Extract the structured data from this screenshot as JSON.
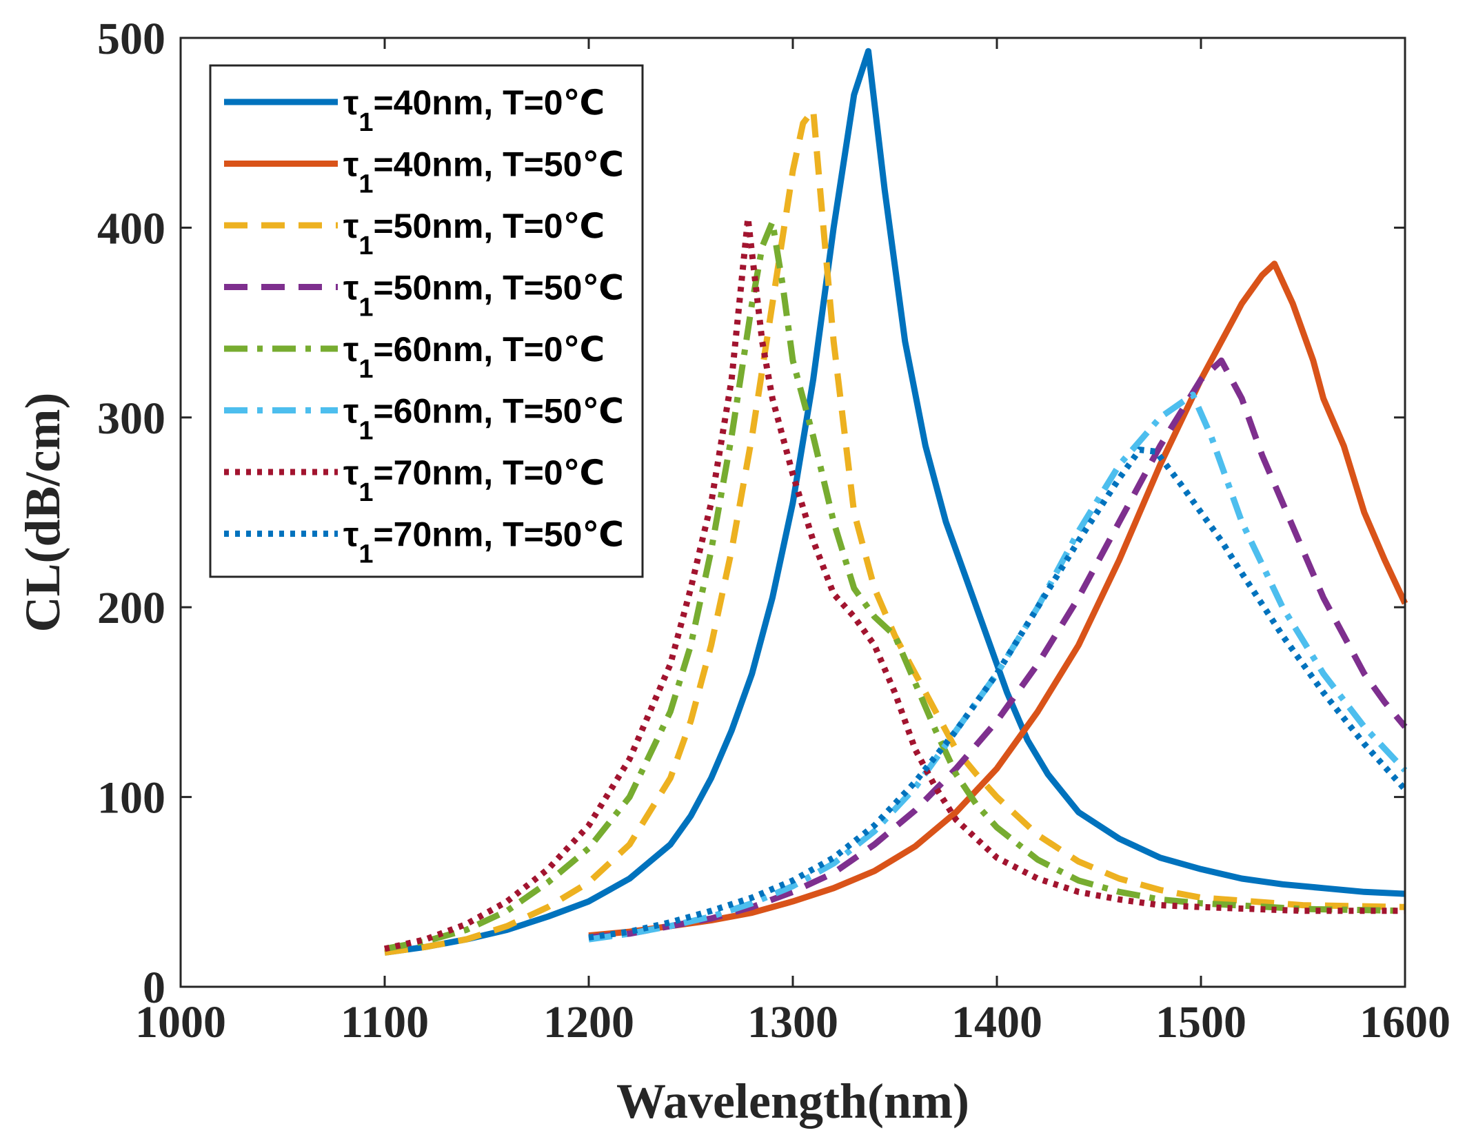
{
  "chart_data": {
    "type": "line",
    "xlabel": "Wavelength(nm)",
    "ylabel": "CL(dB/cm)",
    "xlim": [
      1000,
      1600
    ],
    "ylim": [
      0,
      500
    ],
    "xticks": [
      1000,
      1100,
      1200,
      1300,
      1400,
      1500,
      1600
    ],
    "yticks": [
      0,
      100,
      200,
      300,
      400,
      500
    ],
    "xtick_labels": [
      "1000",
      "1100",
      "1200",
      "1300",
      "1400",
      "1500",
      "1600"
    ],
    "ytick_labels": [
      "0",
      "100",
      "200",
      "300",
      "400",
      "500"
    ],
    "grid": false,
    "legend_position": "top-left",
    "series": [
      {
        "name": "τ1=40nm, T=0℃",
        "legend": {
          "greek": "τ",
          "sub": "1",
          "rest": "=40nm, T=0℃"
        },
        "color": "#0072BD",
        "style": "solid",
        "x": [
          1100,
          1120,
          1140,
          1160,
          1180,
          1200,
          1220,
          1240,
          1250,
          1260,
          1270,
          1280,
          1290,
          1300,
          1310,
          1320,
          1330,
          1337,
          1345,
          1355,
          1365,
          1375,
          1385,
          1395,
          1405,
          1415,
          1425,
          1440,
          1460,
          1480,
          1500,
          1520,
          1540,
          1560,
          1580,
          1600
        ],
        "y": [
          18,
          21,
          25,
          30,
          37,
          45,
          57,
          75,
          90,
          110,
          135,
          165,
          205,
          255,
          320,
          400,
          470,
          493,
          420,
          340,
          285,
          245,
          215,
          185,
          155,
          130,
          112,
          92,
          78,
          68,
          62,
          57,
          54,
          52,
          50,
          49
        ]
      },
      {
        "name": "τ1=40nm, T=50℃",
        "legend": {
          "greek": "τ",
          "sub": "1",
          "rest": "=40nm, T=50℃"
        },
        "color": "#D95319",
        "style": "solid",
        "x": [
          1200,
          1220,
          1240,
          1260,
          1280,
          1300,
          1320,
          1340,
          1360,
          1380,
          1400,
          1420,
          1440,
          1460,
          1480,
          1500,
          1510,
          1520,
          1530,
          1536,
          1545,
          1555,
          1560,
          1570,
          1580,
          1590,
          1600
        ],
        "y": [
          27,
          29,
          32,
          35,
          39,
          45,
          52,
          61,
          74,
          92,
          115,
          145,
          180,
          225,
          275,
          320,
          340,
          360,
          375,
          381,
          360,
          330,
          310,
          285,
          250,
          225,
          202
        ]
      },
      {
        "name": "τ1=50nm, T=0℃",
        "legend": {
          "greek": "τ",
          "sub": "1",
          "rest": "=50nm, T=0℃"
        },
        "color": "#EDB120",
        "style": "dashed",
        "x": [
          1100,
          1120,
          1140,
          1160,
          1180,
          1200,
          1220,
          1240,
          1250,
          1260,
          1270,
          1280,
          1290,
          1300,
          1305,
          1310,
          1315,
          1320,
          1330,
          1340,
          1350,
          1360,
          1370,
          1380,
          1390,
          1400,
          1420,
          1440,
          1460,
          1480,
          1500,
          1550,
          1600
        ],
        "y": [
          18,
          21,
          25,
          32,
          42,
          55,
          75,
          110,
          140,
          180,
          230,
          290,
          360,
          430,
          455,
          462,
          400,
          340,
          250,
          210,
          185,
          165,
          145,
          125,
          112,
          100,
          80,
          66,
          57,
          51,
          47,
          43,
          42
        ]
      },
      {
        "name": "τ1=50nm, T=50℃",
        "legend": {
          "greek": "τ",
          "sub": "1",
          "rest": "=50nm, T=50℃"
        },
        "color": "#7E2F8E",
        "style": "dashed",
        "x": [
          1200,
          1220,
          1240,
          1260,
          1280,
          1300,
          1320,
          1340,
          1360,
          1380,
          1400,
          1420,
          1440,
          1460,
          1480,
          1500,
          1510,
          1520,
          1530,
          1540,
          1550,
          1560,
          1570,
          1580,
          1590,
          1600
        ],
        "y": [
          26,
          28,
          32,
          36,
          42,
          50,
          60,
          75,
          93,
          115,
          140,
          170,
          205,
          245,
          285,
          320,
          330,
          310,
          280,
          255,
          230,
          205,
          185,
          165,
          150,
          137
        ]
      },
      {
        "name": "τ1=60nm, T=0℃",
        "legend": {
          "greek": "τ",
          "sub": "1",
          "rest": "=60nm, T=0℃"
        },
        "color": "#77AC30",
        "style": "dashdot",
        "x": [
          1100,
          1120,
          1140,
          1160,
          1180,
          1200,
          1220,
          1240,
          1250,
          1260,
          1270,
          1280,
          1285,
          1290,
          1295,
          1300,
          1310,
          1320,
          1330,
          1340,
          1350,
          1360,
          1370,
          1380,
          1390,
          1400,
          1420,
          1440,
          1460,
          1480,
          1500,
          1550,
          1600
        ],
        "y": [
          20,
          24,
          30,
          40,
          55,
          73,
          100,
          145,
          180,
          230,
          290,
          360,
          390,
          403,
          370,
          330,
          290,
          245,
          210,
          195,
          185,
          160,
          135,
          112,
          96,
          84,
          67,
          56,
          50,
          46,
          44,
          41,
          40
        ]
      },
      {
        "name": "τ1=60nm, T=50℃",
        "legend": {
          "greek": "τ",
          "sub": "1",
          "rest": "=60nm, T=50℃"
        },
        "color": "#4DBEEE",
        "style": "dashdot",
        "x": [
          1200,
          1220,
          1240,
          1260,
          1280,
          1300,
          1320,
          1340,
          1360,
          1380,
          1400,
          1420,
          1440,
          1460,
          1480,
          1496,
          1505,
          1520,
          1540,
          1560,
          1580,
          1600
        ],
        "y": [
          25,
          28,
          32,
          37,
          44,
          53,
          65,
          82,
          105,
          135,
          165,
          200,
          240,
          275,
          300,
          312,
          290,
          245,
          200,
          165,
          137,
          114
        ]
      },
      {
        "name": "τ1=70nm, T=0℃",
        "legend": {
          "greek": "τ",
          "sub": "1",
          "rest": "=70nm, T=0℃"
        },
        "color": "#A2142F",
        "style": "dotted",
        "x": [
          1100,
          1120,
          1140,
          1160,
          1180,
          1200,
          1220,
          1240,
          1250,
          1260,
          1270,
          1278,
          1285,
          1290,
          1300,
          1310,
          1320,
          1330,
          1340,
          1350,
          1360,
          1370,
          1380,
          1400,
          1420,
          1440,
          1460,
          1480,
          1500,
          1550,
          1600
        ],
        "y": [
          20,
          25,
          33,
          45,
          62,
          85,
          120,
          170,
          210,
          255,
          320,
          405,
          340,
          310,
          270,
          235,
          207,
          195,
          180,
          155,
          125,
          105,
          88,
          68,
          57,
          50,
          46,
          43,
          42,
          40,
          40
        ]
      },
      {
        "name": "τ1=70nm, T=50℃",
        "legend": {
          "greek": "τ",
          "sub": "1",
          "rest": "=70nm, T=50℃"
        },
        "color": "#0072BD",
        "style": "dotted",
        "x": [
          1200,
          1220,
          1240,
          1260,
          1280,
          1300,
          1320,
          1340,
          1360,
          1380,
          1400,
          1420,
          1440,
          1460,
          1470,
          1478,
          1490,
          1500,
          1510,
          1520,
          1540,
          1560,
          1580,
          1600
        ],
        "y": [
          26,
          29,
          34,
          40,
          47,
          56,
          68,
          85,
          108,
          135,
          165,
          200,
          235,
          268,
          283,
          282,
          265,
          250,
          235,
          218,
          185,
          155,
          128,
          104
        ]
      }
    ]
  }
}
